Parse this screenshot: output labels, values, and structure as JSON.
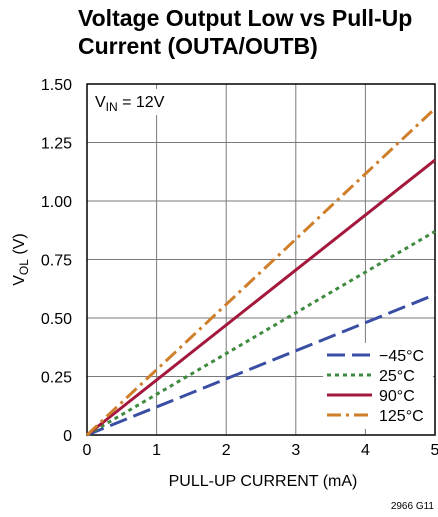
{
  "title_line1": "Voltage Output Low vs Pull-Up",
  "title_line2": "Current (OUTA/OUTB)",
  "chart_data": {
    "type": "line",
    "xlabel": "PULL-UP CURRENT (mA)",
    "ylabel_main": "V",
    "ylabel_sub": "OL",
    "ylabel_unit": " (V)",
    "xlim": [
      0,
      5
    ],
    "ylim": [
      0,
      1.5
    ],
    "x_ticks": [
      0,
      1,
      2,
      3,
      4,
      5
    ],
    "x_tick_labels": [
      "0",
      "1",
      "2",
      "3",
      "4",
      "5"
    ],
    "y_ticks": [
      0,
      0.25,
      0.5,
      0.75,
      1.0,
      1.25,
      1.5
    ],
    "y_tick_labels": [
      "0",
      "0.25",
      "0.50",
      "0.75",
      "1.00",
      "1.25",
      "1.50"
    ],
    "grid": true,
    "annotation": {
      "main": "V",
      "sub": "IN",
      "rest": " = 12V"
    },
    "legend_position": "bottom-right",
    "series": [
      {
        "name": "−45°C",
        "x": [
          0,
          5
        ],
        "y": [
          0,
          0.6
        ],
        "color": "#3a4fa3",
        "style": "dash"
      },
      {
        "name": "25°C",
        "x": [
          0,
          5
        ],
        "y": [
          0,
          0.87
        ],
        "color": "#3e8a3e",
        "style": "dot"
      },
      {
        "name": "90°C",
        "x": [
          0,
          5
        ],
        "y": [
          0,
          1.175
        ],
        "color": "#a3183c",
        "style": "solid"
      },
      {
        "name": "125°C",
        "x": [
          0,
          5
        ],
        "y": [
          0,
          1.395
        ],
        "color": "#cf7e2a",
        "style": "dashdot"
      }
    ]
  },
  "figure_code": "2966 G11"
}
